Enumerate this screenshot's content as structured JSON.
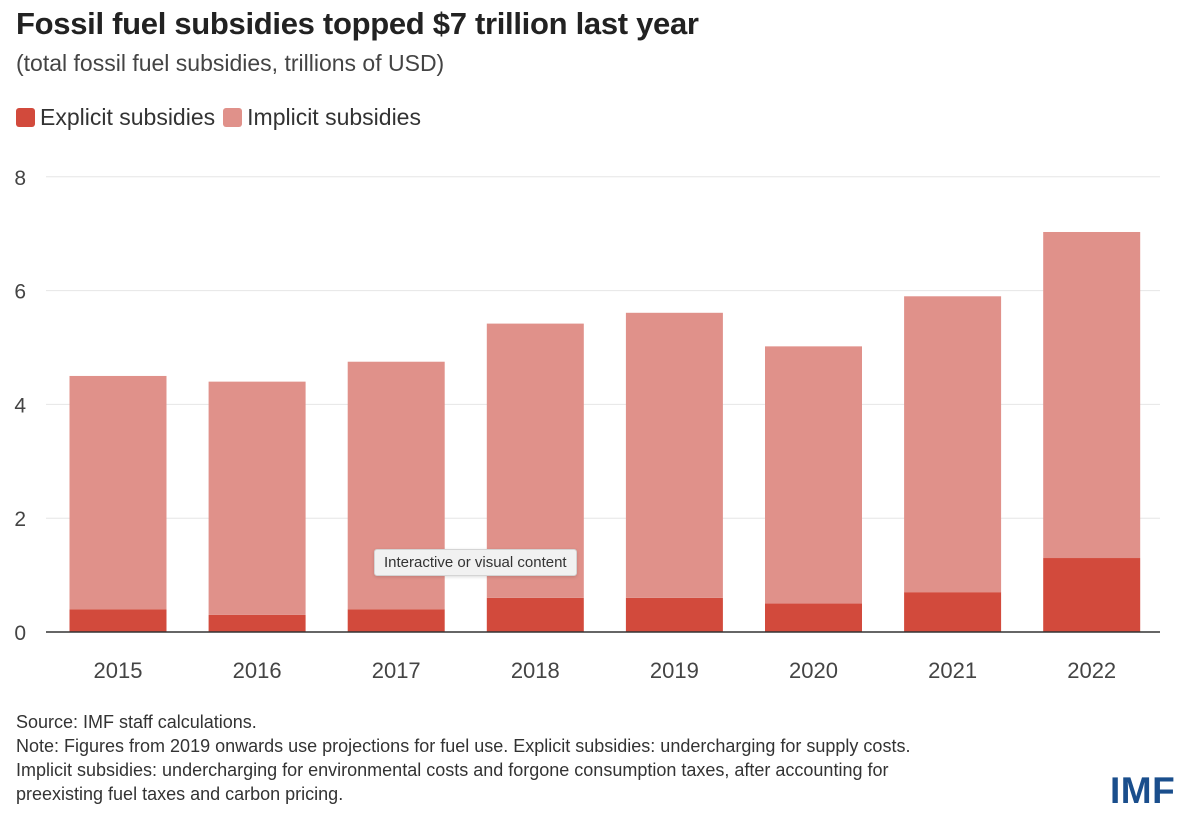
{
  "colors": {
    "explicit": "#d24a3c",
    "implicit": "#e0918a",
    "grid": "#e6e6e6",
    "axis": "#333333",
    "logo": "#1a4e8c"
  },
  "tooltip": "Interactive or visual content",
  "source": "Source: IMF staff calculations.",
  "note_line1": "Note: Figures from 2019 onwards use projections for fuel use. Explicit subsidies: undercharging for supply costs.",
  "note_line2": "Implicit subsidies: undercharging for environmental costs and forgone consumption taxes, after accounting for",
  "note_line3": "preexisting fuel taxes and carbon pricing.",
  "logo": "IMF",
  "chart_data": {
    "type": "bar",
    "stacked": true,
    "title": "Fossil fuel subsidies topped $7 trillion last year",
    "subtitle": "(total fossil fuel subsidies, trillions of USD)",
    "xlabel": "",
    "ylabel": "",
    "categories": [
      "2015",
      "2016",
      "2017",
      "2018",
      "2019",
      "2020",
      "2021",
      "2022"
    ],
    "series": [
      {
        "name": "Explicit subsidies",
        "values": [
          0.4,
          0.3,
          0.4,
          0.6,
          0.6,
          0.5,
          0.7,
          1.3
        ]
      },
      {
        "name": "Implicit subsidies",
        "values": [
          4.1,
          4.1,
          4.35,
          4.82,
          5.01,
          4.52,
          5.2,
          5.73
        ]
      }
    ],
    "ylim": [
      0,
      8
    ],
    "yticks": [
      "0",
      "2",
      "4",
      "6",
      "8"
    ],
    "grid": true,
    "legend": "top-left"
  }
}
